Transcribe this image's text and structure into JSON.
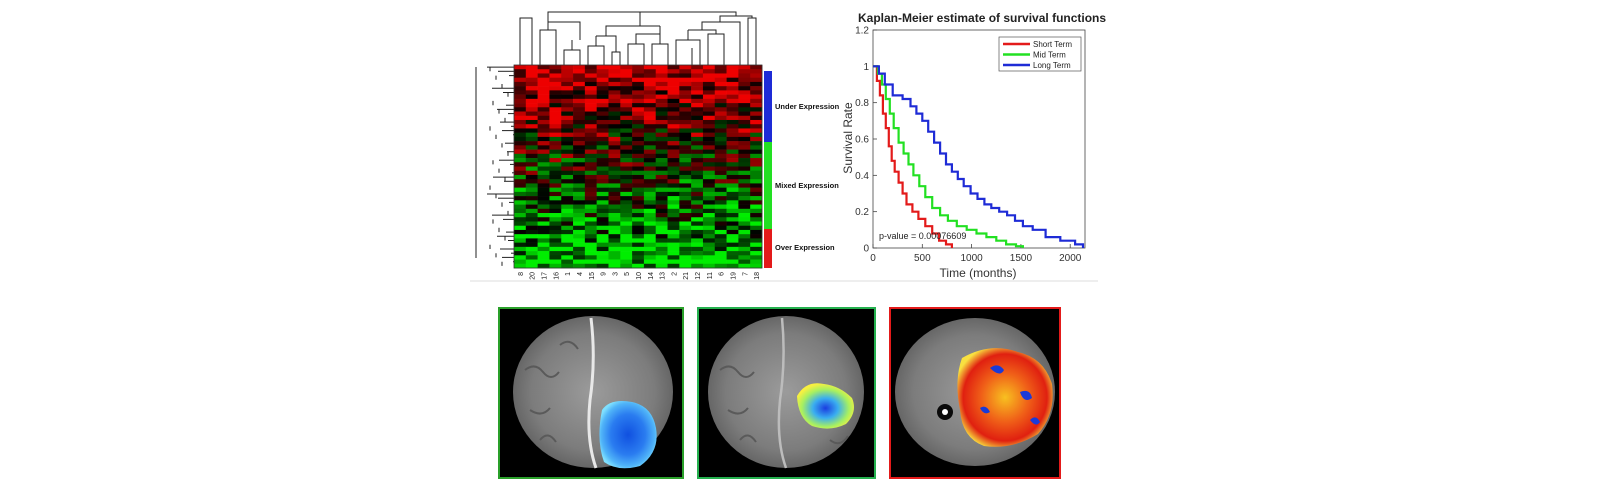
{
  "heatmap": {
    "group_labels": [
      "Under Expression",
      "Mixed Expression",
      "Over Expression"
    ],
    "group_colors": [
      "#1e2bd6",
      "#22e022",
      "#e31a1a"
    ],
    "sample_labels": [
      "8",
      "20",
      "17",
      "16",
      "1",
      "4",
      "15",
      "9",
      "3",
      "5",
      "10",
      "14",
      "13",
      "2",
      "21",
      "12",
      "11",
      "6",
      "19",
      "7",
      "18"
    ],
    "row_count": 48,
    "low_color": "#00ee00",
    "mid_color": "#000000",
    "high_color": "#ee0000"
  },
  "chart_data": {
    "type": "line",
    "title": "Kaplan-Meier estimate of survival functions",
    "xlabel": "Time (months)",
    "ylabel": "Survival Rate",
    "xlim": [
      0,
      2150
    ],
    "ylim": [
      0,
      1.2
    ],
    "xticks": [
      "0",
      "500",
      "1000",
      "1500",
      "2000"
    ],
    "yticks": [
      "0",
      "0.2",
      "0.4",
      "0.6",
      "0.8",
      "1",
      "1.2"
    ],
    "legend_position": "top-right",
    "annotation": "p-value = 0.00076609",
    "series": [
      {
        "name": "Short Term",
        "color": "#e31a1a",
        "x": [
          0,
          40,
          70,
          100,
          130,
          160,
          190,
          220,
          260,
          300,
          340,
          400,
          460,
          530,
          600,
          670,
          740,
          800
        ],
        "y": [
          1,
          0.92,
          0.84,
          0.74,
          0.66,
          0.56,
          0.48,
          0.42,
          0.36,
          0.3,
          0.24,
          0.2,
          0.16,
          0.12,
          0.08,
          0.04,
          0.02,
          0
        ]
      },
      {
        "name": "Mid Term",
        "color": "#22e022",
        "x": [
          0,
          50,
          90,
          130,
          170,
          210,
          260,
          310,
          360,
          410,
          470,
          530,
          600,
          680,
          760,
          850,
          950,
          1050,
          1150,
          1250,
          1350,
          1450,
          1520
        ],
        "y": [
          1,
          0.96,
          0.9,
          0.82,
          0.74,
          0.66,
          0.58,
          0.52,
          0.46,
          0.4,
          0.34,
          0.28,
          0.22,
          0.18,
          0.15,
          0.12,
          0.1,
          0.08,
          0.06,
          0.04,
          0.02,
          0.01,
          0
        ]
      },
      {
        "name": "Long Term",
        "color": "#1e2bd6",
        "x": [
          0,
          60,
          120,
          200,
          300,
          380,
          440,
          500,
          560,
          620,
          680,
          740,
          800,
          860,
          920,
          990,
          1060,
          1130,
          1200,
          1280,
          1360,
          1440,
          1520,
          1620,
          1750,
          1900,
          2050,
          2130
        ],
        "y": [
          1,
          0.96,
          0.9,
          0.84,
          0.82,
          0.78,
          0.74,
          0.7,
          0.64,
          0.58,
          0.52,
          0.46,
          0.42,
          0.38,
          0.34,
          0.3,
          0.27,
          0.24,
          0.22,
          0.2,
          0.18,
          0.15,
          0.12,
          0.1,
          0.06,
          0.04,
          0.02,
          0
        ]
      }
    ]
  },
  "mri_panels": [
    {
      "name": "mri-panel-short-term",
      "frame_color": "#2aa02a",
      "overlay": "blue"
    },
    {
      "name": "mri-panel-mid-term",
      "frame_color": "#24b04e",
      "overlay": "mixed"
    },
    {
      "name": "mri-panel-long-term",
      "frame_color": "#e31a1a",
      "overlay": "red"
    }
  ]
}
